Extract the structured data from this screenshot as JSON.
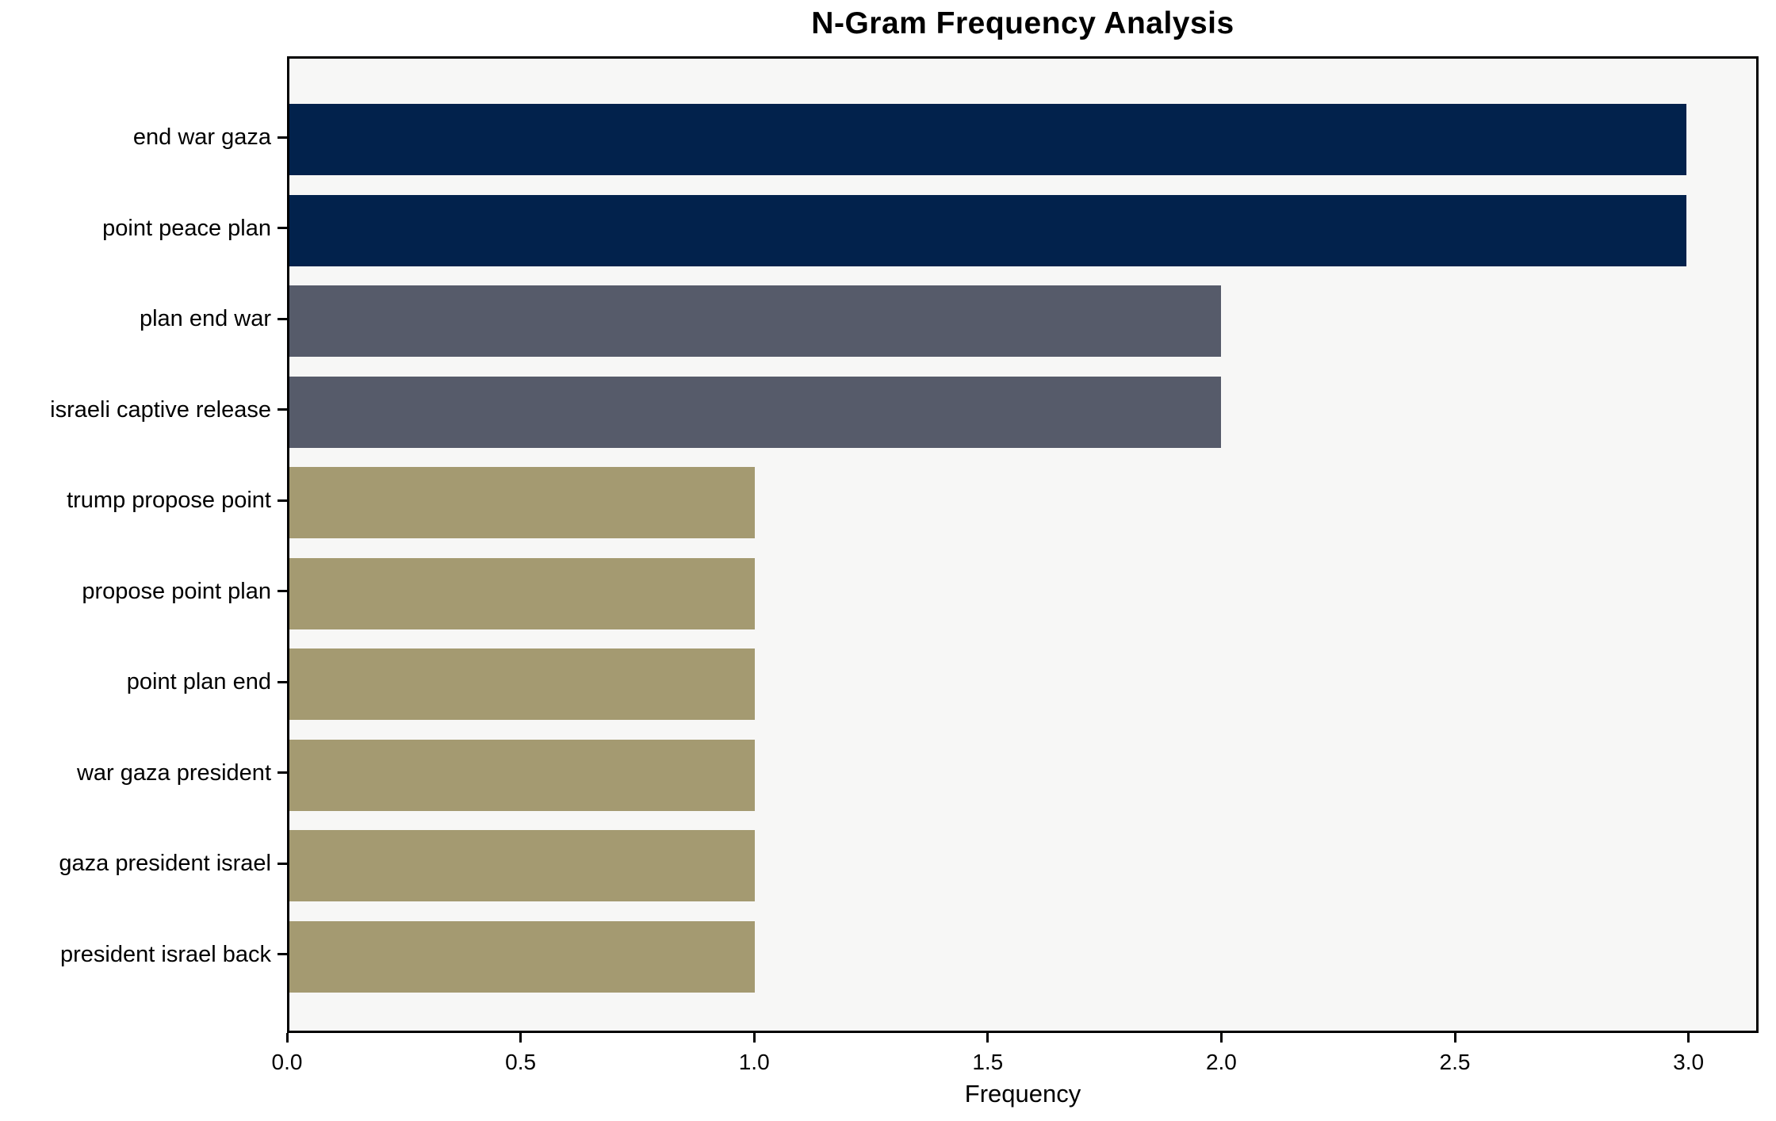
{
  "chart_data": {
    "type": "bar",
    "orientation": "horizontal",
    "title": "N-Gram Frequency Analysis",
    "xlabel": "Frequency",
    "ylabel": "",
    "categories": [
      "end war gaza",
      "point peace plan",
      "plan end war",
      "israeli captive release",
      "trump propose point",
      "propose point plan",
      "point plan end",
      "war gaza president",
      "gaza president israel",
      "president israel back"
    ],
    "values": [
      3,
      3,
      2,
      2,
      1,
      1,
      1,
      1,
      1,
      1
    ],
    "bar_colors": [
      "#02224c",
      "#02224c",
      "#565b6a",
      "#565b6a",
      "#a49a71",
      "#a49a71",
      "#a49a71",
      "#a49a71",
      "#a49a71",
      "#a49a71"
    ],
    "xlim": [
      0,
      3.15
    ],
    "xticks": [
      "0.0",
      "0.5",
      "1.0",
      "1.5",
      "2.0",
      "2.5",
      "3.0"
    ],
    "xtick_values": [
      0,
      0.5,
      1,
      1.5,
      2,
      2.5,
      3
    ],
    "grid": false,
    "legend": "none",
    "plot_background": "#f7f7f6",
    "figure_background": "#ffffff",
    "spine_color": "#000000",
    "text_color": "#000000"
  }
}
